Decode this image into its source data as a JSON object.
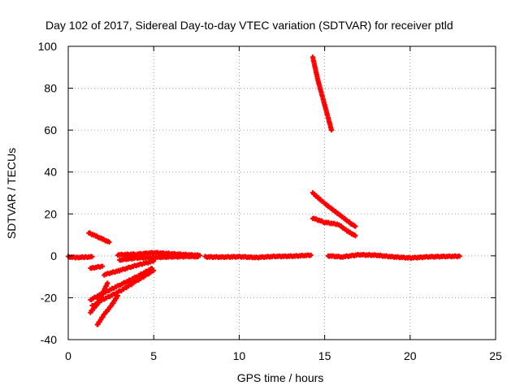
{
  "chart_data": {
    "type": "scatter",
    "title": "Day 102 of 2017, Sidereal Day-to-day VTEC variation (SDTVAR) for receiver ptld",
    "xlabel": "GPS time / hours",
    "ylabel": "SDTVAR / TECUs",
    "xlim": [
      0,
      25
    ],
    "ylim": [
      -40,
      100
    ],
    "x_ticks": [
      0,
      5,
      10,
      15,
      20,
      25
    ],
    "y_ticks": [
      -40,
      -20,
      0,
      20,
      40,
      60,
      80,
      100
    ],
    "grid": true,
    "marker": "+",
    "color": "#ff0000",
    "series": [
      {
        "points": [
          [
            0.0,
            -0.5
          ],
          [
            0.5,
            -0.8
          ],
          [
            1.0,
            -0.6
          ],
          [
            1.4,
            -0.5
          ]
        ]
      },
      {
        "points": [
          [
            1.2,
            11
          ],
          [
            1.6,
            9.5
          ],
          [
            2.0,
            8
          ],
          [
            2.4,
            6.5
          ]
        ]
      },
      {
        "points": [
          [
            1.3,
            -6
          ],
          [
            1.6,
            -5.5
          ],
          [
            2.0,
            -5
          ]
        ]
      },
      {
        "points": [
          [
            2.1,
            -9
          ],
          [
            3.0,
            -7
          ],
          [
            4.0,
            -4.5
          ],
          [
            5.0,
            -2.5
          ]
        ]
      },
      {
        "points": [
          [
            1.3,
            -21
          ],
          [
            2.0,
            -18
          ],
          [
            3.0,
            -14
          ],
          [
            4.0,
            -10
          ],
          [
            4.9,
            -6
          ]
        ]
      },
      {
        "points": [
          [
            1.4,
            -24
          ],
          [
            2.0,
            -21
          ],
          [
            3.0,
            -17
          ],
          [
            4.0,
            -12
          ],
          [
            5.0,
            -7
          ]
        ]
      },
      {
        "points": [
          [
            1.3,
            -27
          ],
          [
            1.7,
            -23
          ],
          [
            2.0,
            -18
          ],
          [
            2.3,
            -13
          ]
        ]
      },
      {
        "points": [
          [
            1.7,
            -33
          ],
          [
            2.1,
            -28
          ],
          [
            2.5,
            -24
          ],
          [
            2.9,
            -19
          ]
        ]
      },
      {
        "points": [
          [
            2.9,
            0.5
          ],
          [
            4.0,
            0.8
          ],
          [
            5.0,
            1.5
          ],
          [
            6.0,
            1.0
          ],
          [
            7.0,
            0.5
          ],
          [
            7.7,
            0.2
          ]
        ]
      },
      {
        "points": [
          [
            3.0,
            -2.0
          ],
          [
            4.0,
            -1.0
          ],
          [
            5.0,
            -0.8
          ],
          [
            6.0,
            -0.5
          ],
          [
            7.0,
            -0.3
          ],
          [
            7.6,
            -0.4
          ]
        ]
      },
      {
        "points": [
          [
            8.0,
            -0.5
          ],
          [
            9.0,
            -0.6
          ],
          [
            10.0,
            -0.4
          ],
          [
            11.0,
            -0.8
          ],
          [
            12.0,
            -0.3
          ],
          [
            13.0,
            -0.2
          ],
          [
            14.0,
            0.2
          ],
          [
            14.2,
            0.4
          ]
        ]
      },
      {
        "points": [
          [
            14.3,
            95
          ],
          [
            14.6,
            84
          ],
          [
            14.9,
            75
          ],
          [
            15.2,
            66
          ],
          [
            15.4,
            60
          ]
        ]
      },
      {
        "points": [
          [
            14.3,
            30
          ],
          [
            15.0,
            25
          ],
          [
            15.8,
            20
          ],
          [
            16.6,
            15
          ],
          [
            16.8,
            14
          ]
        ]
      },
      {
        "points": [
          [
            14.3,
            18
          ],
          [
            15.0,
            16
          ],
          [
            15.8,
            15
          ],
          [
            16.3,
            12
          ],
          [
            16.8,
            9.5
          ]
        ]
      },
      {
        "points": [
          [
            15.2,
            0
          ],
          [
            16.0,
            -0.5
          ],
          [
            17.0,
            0.5
          ],
          [
            18.0,
            0.3
          ],
          [
            19.0,
            -0.5
          ],
          [
            20.0,
            -1.0
          ],
          [
            21.0,
            -0.5
          ],
          [
            22.0,
            -0.3
          ],
          [
            22.9,
            -0.2
          ]
        ]
      }
    ]
  }
}
